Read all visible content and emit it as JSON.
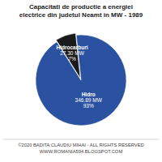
{
  "chart_data": {
    "type": "pie",
    "title": "Capacitati de productie a energiei\nelectrice din judetul Neamt in MW - 1989",
    "categories": [
      "Hidrocarburi",
      "Hidro"
    ],
    "values": [
      27.3,
      346.89
    ],
    "value_labels": [
      "27.30 MW",
      "346.89 MW"
    ],
    "percentages": [
      7,
      93
    ],
    "percentage_labels": [
      "7%",
      "93%"
    ],
    "colors": [
      "#1a1a1a",
      "#2a52a0"
    ],
    "footer": "©2020 BADITA CLAUDIU MIHAI - ALL RIGHTS RESERVED\nWWW.ROMANIA594.BLOGSPOT.COM"
  }
}
